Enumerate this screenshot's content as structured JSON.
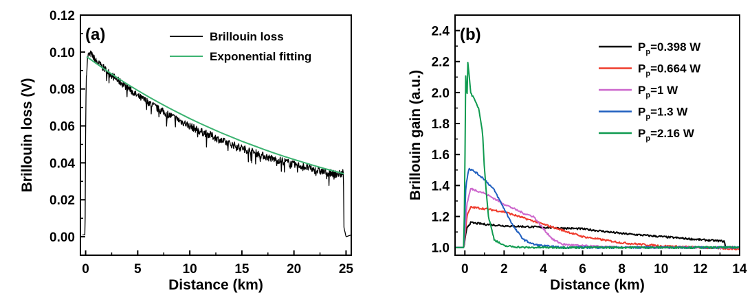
{
  "colors": {
    "black": "#000000",
    "green_fit": "#3cb371",
    "red": "#ef3b2c",
    "magenta": "#cc66cc",
    "blue": "#1f5fbf",
    "green": "#0f9a4f"
  },
  "chart_data": [
    {
      "type": "line",
      "panel_label": "(a)",
      "xlabel": "Distance (km)",
      "ylabel": "Brillouin loss (V)",
      "xlim": [
        -0.5,
        25.5
      ],
      "ylim": [
        -0.01,
        0.12
      ],
      "xticks": [
        0,
        5,
        10,
        15,
        20,
        25
      ],
      "xtick_labels": [
        "0",
        "5",
        "10",
        "15",
        "20",
        "25"
      ],
      "yticks": [
        0.0,
        0.02,
        0.04,
        0.06,
        0.08,
        0.1,
        0.12
      ],
      "ytick_labels": [
        "0.00",
        "0.02",
        "0.04",
        "0.06",
        "0.08",
        "0.10",
        "0.12"
      ],
      "legend_position": "top-right",
      "grid": false,
      "series": [
        {
          "name": "Brillouin loss",
          "color": "#000000",
          "noisy": true,
          "x": [
            -0.3,
            -0.05,
            0.0,
            0.05,
            0.2,
            0.5,
            1,
            2,
            3,
            4,
            5,
            6,
            7,
            8,
            9,
            10,
            11,
            12,
            13,
            14,
            15,
            16,
            17,
            18,
            19,
            20,
            21,
            22,
            23,
            24,
            24.6,
            24.75,
            24.8,
            25.0,
            25.5
          ],
          "y": [
            0.001,
            0.001,
            0.06,
            0.085,
            0.098,
            0.099,
            0.095,
            0.09,
            0.085,
            0.081,
            0.076,
            0.073,
            0.069,
            0.066,
            0.063,
            0.06,
            0.057,
            0.055,
            0.052,
            0.05,
            0.048,
            0.046,
            0.044,
            0.042,
            0.041,
            0.039,
            0.038,
            0.036,
            0.035,
            0.034,
            0.034,
            0.035,
            0.005,
            0.0,
            0.001
          ]
        },
        {
          "name": "Exponential fitting",
          "color": "#3cb371",
          "noisy": false,
          "x": [
            0.1,
            1,
            2,
            3,
            4,
            5,
            6,
            7,
            8,
            9,
            10,
            11,
            12,
            13,
            14,
            15,
            16,
            17,
            18,
            19,
            20,
            21,
            22,
            23,
            24,
            24.8
          ],
          "y": [
            0.0975,
            0.0939,
            0.09,
            0.0862,
            0.0826,
            0.0792,
            0.0759,
            0.0727,
            0.0697,
            0.0668,
            0.064,
            0.0613,
            0.0588,
            0.0563,
            0.054,
            0.0517,
            0.0496,
            0.0475,
            0.0455,
            0.0436,
            0.0418,
            0.0401,
            0.0384,
            0.0368,
            0.0353,
            0.0341
          ]
        }
      ]
    },
    {
      "type": "line",
      "panel_label": "(b)",
      "xlabel": "Distance (km)",
      "ylabel": "Brillouin gain (a.u.)",
      "xlim": [
        -0.5,
        14
      ],
      "ylim": [
        0.95,
        2.5
      ],
      "xticks": [
        0,
        2,
        4,
        6,
        8,
        10,
        12,
        14
      ],
      "xtick_labels": [
        "0",
        "2",
        "4",
        "6",
        "8",
        "10",
        "12",
        "14"
      ],
      "yticks": [
        1.0,
        1.2,
        1.4,
        1.6,
        1.8,
        2.0,
        2.2,
        2.4
      ],
      "ytick_labels": [
        "1.0",
        "1.2",
        "1.4",
        "1.6",
        "1.8",
        "2.0",
        "2.2",
        "2.4"
      ],
      "legend_position": "top-right",
      "grid": false,
      "series": [
        {
          "name": "P",
          "name_sub": "p",
          "name_suffix": "=0.398 W",
          "color": "#000000",
          "x": [
            -0.5,
            -0.05,
            0.1,
            0.3,
            1,
            2,
            4,
            6,
            8,
            10,
            12,
            13.2,
            13.3,
            14
          ],
          "y": [
            1.0,
            1.0,
            1.13,
            1.16,
            1.15,
            1.14,
            1.13,
            1.12,
            1.09,
            1.07,
            1.05,
            1.04,
            1.0,
            1.0
          ]
        },
        {
          "name": "P",
          "name_sub": "p",
          "name_suffix": "=0.664 W",
          "color": "#ef3b2c",
          "x": [
            -0.5,
            -0.05,
            0.1,
            0.3,
            1,
            2,
            3,
            4,
            5,
            6,
            8,
            10,
            12,
            14
          ],
          "y": [
            1.0,
            1.0,
            1.2,
            1.26,
            1.25,
            1.23,
            1.19,
            1.15,
            1.11,
            1.07,
            1.03,
            1.01,
            1.0,
            0.99
          ]
        },
        {
          "name": "P",
          "name_sub": "p",
          "name_suffix": "=1 W",
          "color": "#cc66cc",
          "x": [
            -0.5,
            -0.05,
            0.1,
            0.3,
            1,
            2,
            3,
            3.5,
            4,
            4.5,
            5,
            6,
            8,
            14
          ],
          "y": [
            1.0,
            1.0,
            1.28,
            1.38,
            1.35,
            1.28,
            1.22,
            1.2,
            1.12,
            1.05,
            1.02,
            1.01,
            1.0,
            1.0
          ]
        },
        {
          "name": "P",
          "name_sub": "p",
          "name_suffix": "=1.3 W",
          "color": "#1f5fbf",
          "x": [
            -0.5,
            -0.05,
            0.05,
            0.2,
            0.5,
            1,
            1.5,
            2,
            2.5,
            3,
            3.5,
            4,
            5,
            14
          ],
          "y": [
            1.0,
            1.0,
            1.4,
            1.51,
            1.49,
            1.44,
            1.37,
            1.25,
            1.13,
            1.05,
            1.02,
            1.01,
            1.0,
            1.0
          ]
        },
        {
          "name": "P",
          "name_sub": "p",
          "name_suffix": "=2.16 W",
          "color": "#0f9a4f",
          "x": [
            -0.5,
            -0.05,
            0.0,
            0.05,
            0.1,
            0.15,
            0.3,
            0.5,
            0.7,
            0.9,
            1.0,
            1.2,
            1.5,
            2,
            3,
            14
          ],
          "y": [
            1.0,
            1.0,
            1.5,
            2.2,
            1.9,
            2.2,
            2.0,
            1.95,
            1.9,
            1.75,
            1.5,
            1.2,
            1.05,
            1.01,
            1.0,
            1.0
          ]
        }
      ]
    }
  ]
}
